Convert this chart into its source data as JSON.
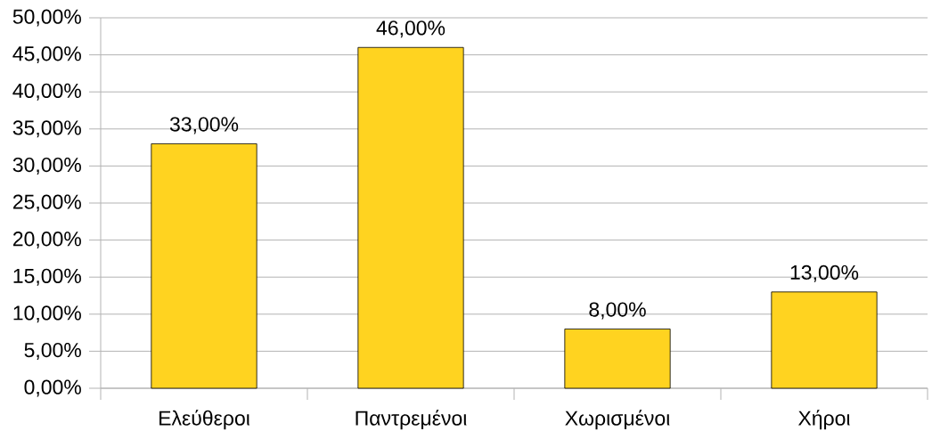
{
  "chart_data": {
    "type": "bar",
    "categories": [
      "Ελεύθεροι",
      "Παντρεμένοι",
      "Χωρισμένοι",
      "Χήροι"
    ],
    "values": [
      33,
      46,
      8,
      13
    ],
    "color": "#ffd320",
    "value_labels": [
      "33,00%",
      "46,00%",
      "8,00%",
      "13,00%"
    ],
    "ylim": [
      0,
      50
    ],
    "yticks": [
      {
        "value": 0,
        "label": "0,00%"
      },
      {
        "value": 5,
        "label": "5,00%"
      },
      {
        "value": 10,
        "label": "10,00%"
      },
      {
        "value": 15,
        "label": "15,00%"
      },
      {
        "value": 20,
        "label": "20,00%"
      },
      {
        "value": 25,
        "label": "25,00%"
      },
      {
        "value": 30,
        "label": "30,00%"
      },
      {
        "value": 35,
        "label": "35,00%"
      },
      {
        "value": 40,
        "label": "40,00%"
      },
      {
        "value": 45,
        "label": "45,00%"
      },
      {
        "value": 50,
        "label": "50,00%"
      }
    ],
    "grid": "y"
  }
}
